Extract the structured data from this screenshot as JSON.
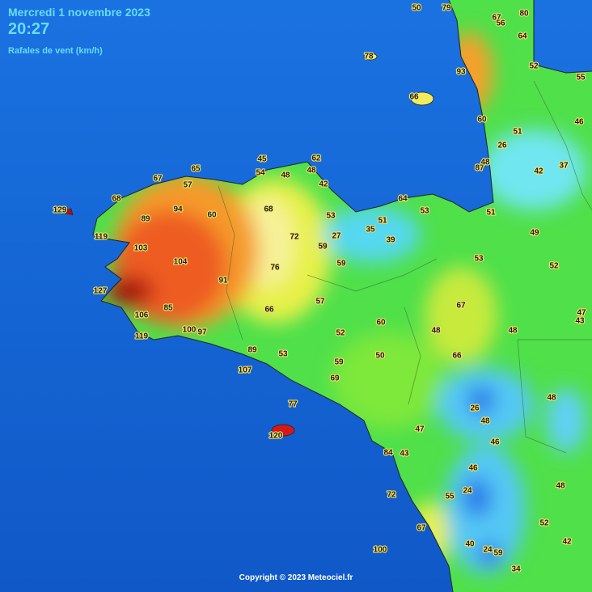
{
  "header": {
    "date": "Mercredi 1 novembre 2023",
    "time": "20:27",
    "subtitle": "Rafales de vent (km/h)"
  },
  "stations": [
    50,
    79,
    67,
    56,
    80,
    64,
    78,
    52,
    55,
    93,
    66,
    46,
    60,
    51,
    26,
    87,
    48,
    42,
    37,
    45,
    62,
    54,
    48,
    48,
    67,
    65,
    57,
    42,
    68,
    64,
    53,
    51,
    129,
    94,
    60,
    68,
    53,
    51,
    89,
    35,
    49,
    119,
    72,
    27,
    39,
    103,
    59,
    53,
    52,
    104,
    76,
    59,
    91,
    127,
    57,
    67,
    85,
    66,
    106,
    47,
    43,
    100,
    97,
    60,
    48,
    48,
    52,
    119,
    89,
    53,
    50,
    66,
    59,
    107,
    69,
    48,
    77,
    26,
    48,
    47,
    120,
    46,
    84,
    43,
    46,
    48,
    24,
    55,
    72,
    52,
    67,
    42,
    40,
    24,
    59,
    100,
    34
  ],
  "footer": {
    "copyright": "Copyright © 2023 Meteociel.fr"
  }
}
